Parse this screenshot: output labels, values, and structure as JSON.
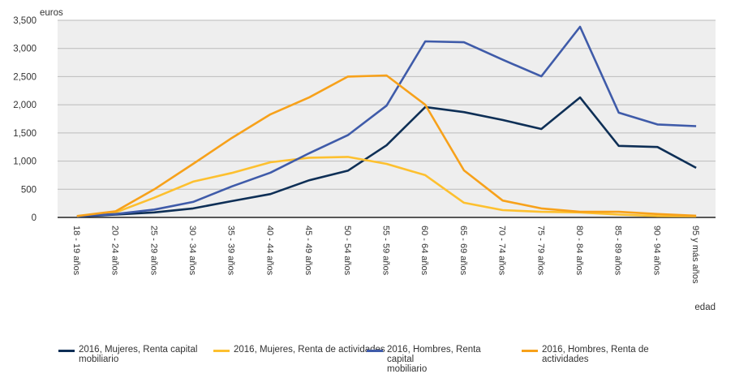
{
  "chart_data": {
    "type": "line",
    "title": "",
    "ylabel": "euros",
    "xlabel": "edad",
    "ylim": [
      0,
      3500
    ],
    "yticks": [
      0,
      500,
      1000,
      1500,
      2000,
      2500,
      3000,
      3500
    ],
    "ytick_labels": [
      "0",
      "500",
      "1,000",
      "1,500",
      "2,000",
      "2,500",
      "3,000",
      "3,500"
    ],
    "grid": true,
    "legend_position": "bottom",
    "categories": [
      "18 - 19 años",
      "20 - 24 años",
      "25 - 29 años",
      "30 - 34 años",
      "35 - 39 años",
      "40 - 44 años",
      "45 - 49 años",
      "50 - 54 años",
      "55 - 59 años",
      "60 - 64 años",
      "65 - 69 años",
      "70 - 74 años",
      "75 - 79 años",
      "80 - 84 años",
      "85 - 89 años",
      "90 - 94 años",
      "95 y más años"
    ],
    "series": [
      {
        "name": "2016, Mujeres, Renta capital mobiliario",
        "label_lines": [
          "2016, Mujeres, Renta capital",
          "mobiliario"
        ],
        "color": "#0e2f56",
        "values": [
          15,
          50,
          90,
          160,
          290,
          415,
          660,
          830,
          1280,
          1960,
          1870,
          1730,
          1570,
          2130,
          1270,
          1250,
          880
        ]
      },
      {
        "name": "2016, Mujeres, Renta de actividades",
        "label_lines": [
          "2016, Mujeres, Renta de actividades"
        ],
        "color": "#fdc02f",
        "values": [
          20,
          90,
          350,
          635,
          790,
          980,
          1060,
          1075,
          950,
          750,
          260,
          130,
          100,
          90,
          50,
          25,
          20
        ]
      },
      {
        "name": "2016, Hombres, Renta capital mobiliario",
        "label_lines": [
          "2016, Hombres, Renta capital",
          "mobiliario"
        ],
        "color": "#3f5ba9",
        "values": [
          20,
          60,
          140,
          275,
          550,
          795,
          1140,
          1460,
          1985,
          3125,
          3110,
          2800,
          2505,
          3385,
          1860,
          1650,
          1620
        ]
      },
      {
        "name": "2016, Hombres, Renta de actividades",
        "label_lines": [
          "2016, Hombres, Renta de actividades"
        ],
        "color": "#f7a11a",
        "values": [
          25,
          110,
          500,
          950,
          1410,
          1830,
          2130,
          2500,
          2520,
          2000,
          835,
          300,
          160,
          100,
          100,
          60,
          30
        ]
      }
    ]
  }
}
